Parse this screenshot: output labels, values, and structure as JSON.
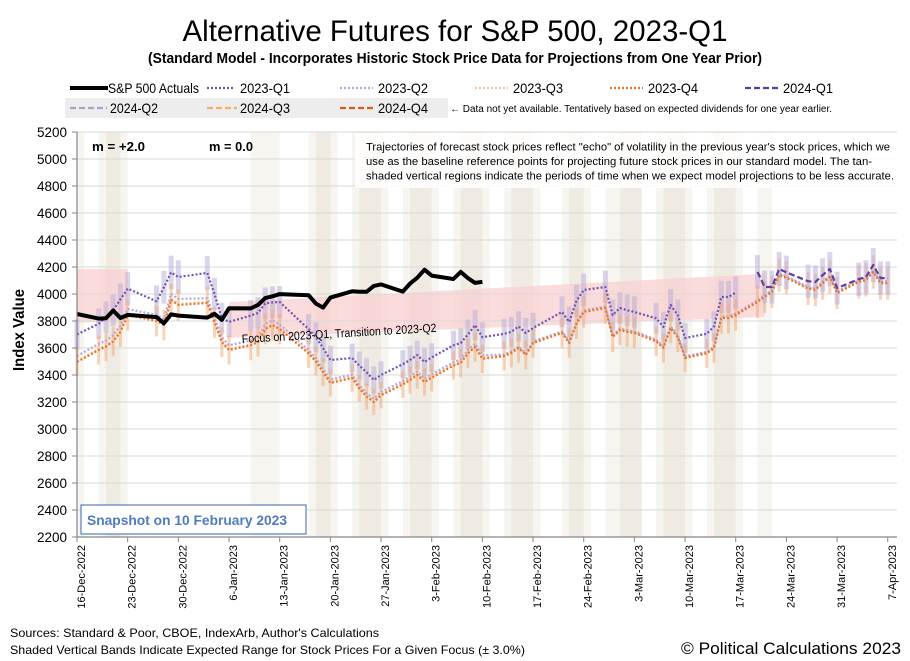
{
  "title": "Alternative Futures for S&P 500, 2023-Q1",
  "subtitle": "(Standard Model - Incorporates Historic Stock Price Data for Projections from One Year Prior)",
  "legend": {
    "items": [
      {
        "label": "S&P 500 Actuals",
        "series_index": 0
      },
      {
        "label": "2023-Q1",
        "series_index": 1
      },
      {
        "label": "2023-Q2",
        "series_index": 2
      },
      {
        "label": "2023-Q3",
        "series_index": 3
      },
      {
        "label": "2023-Q4",
        "series_index": 4
      },
      {
        "label": "2024-Q1",
        "series_index": 5
      },
      {
        "label": "2024-Q2",
        "series_index": 6
      },
      {
        "label": "2024-Q3",
        "series_index": 7
      },
      {
        "label": "2024-Q4",
        "series_index": 8
      }
    ],
    "note": "← Data not yet available.  Tentatively based on expected dividends for one year earlier."
  },
  "annotations": {
    "m_plus": "m = +2.0",
    "m_zero": "m = 0.0",
    "explanation": [
      "Trajectories of forecast stock prices reflect \"echo\" of volatility in  the previous year's stock prices, which we",
      "use as the baseline reference points for projecting future stock prices in our standard model.   The tan-",
      "shaded vertical regions indicate the periods of time when we expect model projections to be less accurate."
    ],
    "focus_label": "Focus on 2023-Q1, Transition to 2023-Q2",
    "snapshot": "Snapshot on 10 February 2023"
  },
  "footer": {
    "sources": "Sources: Standard & Poor, CBOE, IndexArb, Author's Calculations",
    "bands_note": "Shaded Vertical Bands Indicate Expected Range for Stock Prices For a Given Focus (± 3.0%)",
    "copyright": "© Political Calculations 2023"
  },
  "colors": {
    "low_accuracy_light": "#F7F5F0",
    "low_accuracy_dark": "#EFEBE2",
    "focus_range": "#F9D0D0",
    "gridline": "#D9D9D9",
    "axis": "#868686",
    "legend_bg": "#EDEDED",
    "snapshot_text": "#4F7BBF",
    "snapshot_border": "#5A7FB8"
  },
  "chart_data": {
    "type": "line",
    "title": "Alternative Futures for S&P 500, 2023-Q1",
    "xlabel": "",
    "ylabel": "Index Value",
    "ylim": [
      2200,
      5200
    ],
    "yticks": [
      "2200",
      "2400",
      "2600",
      "2800",
      "3000",
      "3200",
      "3400",
      "3600",
      "3800",
      "4000",
      "4200",
      "4400",
      "4600",
      "4800",
      "5000",
      "5200"
    ],
    "xlim": [
      "2022-12-16",
      "2023-04-08"
    ],
    "xticks": [
      {
        "date": "2022-12-16",
        "label": "16-Dec-2022"
      },
      {
        "date": "2022-12-23",
        "label": "23-Dec-2022"
      },
      {
        "date": "2022-12-30",
        "label": "30-Dec-2022"
      },
      {
        "date": "2023-01-06",
        "label": "6-Jan-2023"
      },
      {
        "date": "2023-01-13",
        "label": "13-Jan-2023"
      },
      {
        "date": "2023-01-20",
        "label": "20-Jan-2023"
      },
      {
        "date": "2023-01-27",
        "label": "27-Jan-2023"
      },
      {
        "date": "2023-02-03",
        "label": "3-Feb-2023"
      },
      {
        "date": "2023-02-10",
        "label": "10-Feb-2023"
      },
      {
        "date": "2023-02-17",
        "label": "17-Feb-2023"
      },
      {
        "date": "2023-02-24",
        "label": "24-Feb-2023"
      },
      {
        "date": "2023-03-03",
        "label": "3-Mar-2023"
      },
      {
        "date": "2023-03-10",
        "label": "10-Mar-2023"
      },
      {
        "date": "2023-03-17",
        "label": "17-Mar-2023"
      },
      {
        "date": "2023-03-24",
        "label": "24-Mar-2023"
      },
      {
        "date": "2023-03-31",
        "label": "31-Mar-2023"
      },
      {
        "date": "2023-04-07",
        "label": "7-Apr-2023"
      }
    ],
    "grid": "horizontal",
    "legend_position": "top",
    "error_band_pct": 3.0,
    "x": [
      "2022-12-16",
      "2022-12-19",
      "2022-12-20",
      "2022-12-21",
      "2022-12-22",
      "2022-12-23",
      "2022-12-27",
      "2022-12-28",
      "2022-12-29",
      "2022-12-30",
      "2023-01-03",
      "2023-01-04",
      "2023-01-05",
      "2023-01-06",
      "2023-01-09",
      "2023-01-10",
      "2023-01-11",
      "2023-01-12",
      "2023-01-13",
      "2023-01-17",
      "2023-01-18",
      "2023-01-19",
      "2023-01-20",
      "2023-01-23",
      "2023-01-24",
      "2023-01-25",
      "2023-01-26",
      "2023-01-27",
      "2023-01-30",
      "2023-01-31",
      "2023-02-01",
      "2023-02-02",
      "2023-02-03",
      "2023-02-06",
      "2023-02-07",
      "2023-02-08",
      "2023-02-09",
      "2023-02-10",
      "2023-02-13",
      "2023-02-14",
      "2023-02-15",
      "2023-02-16",
      "2023-02-17",
      "2023-02-21",
      "2023-02-22",
      "2023-02-23",
      "2023-02-24",
      "2023-02-27",
      "2023-02-28",
      "2023-03-01",
      "2023-03-02",
      "2023-03-03",
      "2023-03-06",
      "2023-03-07",
      "2023-03-08",
      "2023-03-09",
      "2023-03-10",
      "2023-03-13",
      "2023-03-14",
      "2023-03-15",
      "2023-03-16",
      "2023-03-17",
      "2023-03-20",
      "2023-03-21",
      "2023-03-22",
      "2023-03-23",
      "2023-03-24",
      "2023-03-27",
      "2023-03-28",
      "2023-03-29",
      "2023-03-30",
      "2023-03-31",
      "2023-04-03",
      "2023-04-04",
      "2023-04-05",
      "2023-04-06",
      "2023-04-07"
    ],
    "series": [
      {
        "name": "S&P 500 Actuals",
        "color": "#000000",
        "style": "solid",
        "error_bars": false,
        "values": [
          3852,
          3818,
          3821,
          3878,
          3822,
          3845,
          3829,
          3783,
          3849,
          3840,
          3825,
          3853,
          3808,
          3895,
          3893,
          3919,
          3970,
          3983,
          3999,
          3991,
          3929,
          3899,
          3973,
          4020,
          4017,
          4016,
          4060,
          4071,
          4018,
          4077,
          4120,
          4180,
          4136,
          4111,
          4164,
          4118,
          4082,
          4090,
          null,
          null,
          null,
          null,
          null,
          null,
          null,
          null,
          null,
          null,
          null,
          null,
          null,
          null,
          null,
          null,
          null,
          null,
          null,
          null,
          null,
          null,
          null,
          null,
          null,
          null,
          null,
          null,
          null,
          null,
          null,
          null,
          null,
          null,
          null,
          null,
          null,
          null,
          null
        ]
      },
      {
        "name": "2023-Q1",
        "color": "#7453AE",
        "style": "dotted",
        "error_bars": true,
        "error_bar_color": "#B7ABD9",
        "values": [
          3700,
          3780,
          3830,
          3880,
          3960,
          4040,
          3945,
          4050,
          4160,
          4126,
          4156,
          4000,
          3820,
          3793,
          3840,
          3860,
          3930,
          3938,
          3941,
          3740,
          3680,
          3600,
          3511,
          3526,
          3470,
          3420,
          3363,
          3400,
          3480,
          3511,
          3548,
          3496,
          3530,
          3620,
          3637,
          3700,
          3770,
          3680,
          3705,
          3719,
          3760,
          3711,
          3748,
          3867,
          3793,
          3950,
          4030,
          4052,
          3844,
          3896,
          3880,
          3867,
          3820,
          3756,
          3919,
          3844,
          3674,
          3705,
          3760,
          3978,
          3978,
          4010,
          null,
          null,
          null,
          null,
          null,
          null,
          null,
          null,
          null,
          null,
          null,
          null,
          null,
          null,
          null
        ]
      },
      {
        "name": "2023-Q2",
        "color": "#B6A8DA",
        "style": "dotted",
        "error_bars": false,
        "values": [
          3541,
          3630,
          3655,
          3695,
          3765,
          3889,
          3845,
          3815,
          4001,
          3964,
          3968,
          3825,
          3679,
          3620,
          3655,
          3679,
          3775,
          3805,
          3775,
          3585,
          3525,
          3445,
          3366,
          3403,
          3325,
          3265,
          3225,
          3275,
          3355,
          3388,
          3425,
          3373,
          3405,
          3495,
          3514,
          3585,
          3632,
          3545,
          3552,
          3575,
          3612,
          3560,
          3649,
          3723,
          3649,
          3792,
          3879,
          3908,
          3693,
          3745,
          3732,
          3723,
          3662,
          3612,
          3760,
          3693,
          3538,
          3572,
          3612,
          3834,
          3834,
          3856,
          3953,
          3992,
          4027,
          4153,
          4132,
          4052,
          4042,
          4092,
          4138,
          4019,
          4102,
          4116,
          4175,
          4093,
          4093
        ]
      },
      {
        "name": "2023-Q3",
        "color": "#F7C79F",
        "style": "dotted",
        "error_bars": false,
        "values": [
          3504,
          3593,
          3618,
          3658,
          3728,
          3852,
          3808,
          3778,
          3964,
          3927,
          3941,
          3798,
          3652,
          3593,
          3628,
          3652,
          3748,
          3778,
          3748,
          3568,
          3508,
          3428,
          3349,
          3386,
          3308,
          3248,
          3208,
          3258,
          3338,
          3371,
          3408,
          3356,
          3388,
          3478,
          3497,
          3568,
          3615,
          3528,
          3548,
          3571,
          3608,
          3556,
          3645,
          3719,
          3645,
          3788,
          3875,
          3904,
          3689,
          3741,
          3728,
          3719,
          3658,
          3608,
          3756,
          3689,
          3534,
          3568,
          3608,
          3830,
          3830,
          3852,
          3949,
          3988,
          4023,
          4149,
          4128,
          4048,
          4038,
          4088,
          4134,
          4015,
          4098,
          4112,
          4171,
          4089,
          4089
        ]
      },
      {
        "name": "2023-Q4",
        "color": "#E8742A",
        "style": "dotted",
        "error_bars": true,
        "error_bar_color": "#F2A772",
        "values": [
          3496,
          3585,
          3610,
          3650,
          3720,
          3844,
          3800,
          3770,
          3956,
          3919,
          3933,
          3790,
          3644,
          3585,
          3620,
          3644,
          3740,
          3770,
          3740,
          3560,
          3500,
          3420,
          3341,
          3378,
          3300,
          3240,
          3200,
          3250,
          3330,
          3363,
          3400,
          3348,
          3380,
          3470,
          3489,
          3560,
          3607,
          3520,
          3540,
          3563,
          3600,
          3548,
          3637,
          3711,
          3637,
          3780,
          3867,
          3896,
          3681,
          3733,
          3720,
          3711,
          3650,
          3600,
          3748,
          3681,
          3526,
          3560,
          3600,
          3822,
          3822,
          3844,
          3941,
          3980,
          4015,
          4141,
          4120,
          4040,
          4030,
          4080,
          4126,
          4007,
          4090,
          4104,
          4163,
          4081,
          4081
        ]
      },
      {
        "name": "2024-Q1",
        "color": "#5C3E9E",
        "style": "dashed",
        "error_bars": true,
        "error_bar_color": "#B7ABD9",
        "values": [
          null,
          null,
          null,
          null,
          null,
          null,
          null,
          null,
          null,
          null,
          null,
          null,
          null,
          null,
          null,
          null,
          null,
          null,
          null,
          null,
          null,
          null,
          null,
          null,
          null,
          null,
          null,
          null,
          null,
          null,
          null,
          null,
          null,
          null,
          null,
          null,
          null,
          null,
          null,
          null,
          null,
          null,
          null,
          null,
          null,
          null,
          null,
          null,
          null,
          null,
          null,
          null,
          null,
          null,
          null,
          null,
          null,
          null,
          null,
          null,
          null,
          null,
          4163,
          4052,
          4052,
          4185,
          4160,
          4095,
          4089,
          4140,
          4185,
          4044,
          4110,
          4126,
          4215,
          4118,
          4118
        ]
      },
      {
        "name": "2024-Q2",
        "color": "#A9A2CE",
        "style": "dashed",
        "error_bars": false,
        "values": []
      },
      {
        "name": "2024-Q3",
        "color": "#F2B06B",
        "style": "dashed",
        "error_bars": false,
        "values": []
      },
      {
        "name": "2024-Q4",
        "color": "#CF5E22",
        "style": "dashed",
        "error_bars": false,
        "values": []
      }
    ],
    "focus_ranges": [
      {
        "label": "",
        "start": "2022-12-16",
        "end": "2022-12-23",
        "low": [
          3790,
          3790
        ],
        "high": [
          4185,
          4185
        ]
      },
      {
        "label": "Focus on 2023-Q1, Transition to 2023-Q2",
        "start": "2023-01-06",
        "end": "2023-03-21",
        "low": [
          3675,
          3830
        ],
        "high": [
          3940,
          4150
        ]
      }
    ],
    "low_accuracy_periods": [
      {
        "start": "2022-12-16",
        "end": "2022-12-17",
        "shade": "light"
      },
      {
        "start": "2022-12-19",
        "end": "2022-12-23",
        "shade": "light"
      },
      {
        "start": "2022-12-20",
        "end": "2022-12-22",
        "shade": "dark"
      },
      {
        "start": "2023-01-09",
        "end": "2023-01-13",
        "shade": "light"
      },
      {
        "start": "2023-01-17",
        "end": "2023-01-21",
        "shade": "light"
      },
      {
        "start": "2023-01-18",
        "end": "2023-01-20",
        "shade": "dark"
      },
      {
        "start": "2023-01-23",
        "end": "2023-01-28",
        "shade": "light"
      },
      {
        "start": "2023-01-24",
        "end": "2023-01-27",
        "shade": "dark"
      },
      {
        "start": "2023-01-30",
        "end": "2023-02-04",
        "shade": "light"
      },
      {
        "start": "2023-01-31",
        "end": "2023-02-03",
        "shade": "dark"
      },
      {
        "start": "2023-02-06",
        "end": "2023-02-11",
        "shade": "light"
      },
      {
        "start": "2023-02-07",
        "end": "2023-02-10",
        "shade": "dark"
      },
      {
        "start": "2023-02-13",
        "end": "2023-02-18",
        "shade": "light"
      },
      {
        "start": "2023-02-14",
        "end": "2023-02-17",
        "shade": "dark"
      },
      {
        "start": "2023-02-21",
        "end": "2023-02-25",
        "shade": "light"
      },
      {
        "start": "2023-02-22",
        "end": "2023-02-24",
        "shade": "dark"
      },
      {
        "start": "2023-02-27",
        "end": "2023-03-04",
        "shade": "light"
      },
      {
        "start": "2023-03-01",
        "end": "2023-03-04",
        "shade": "dark"
      },
      {
        "start": "2023-03-06",
        "end": "2023-03-11",
        "shade": "light"
      },
      {
        "start": "2023-03-07",
        "end": "2023-03-10",
        "shade": "dark"
      },
      {
        "start": "2023-03-13",
        "end": "2023-03-18",
        "shade": "light"
      },
      {
        "start": "2023-03-14",
        "end": "2023-03-17",
        "shade": "dark"
      },
      {
        "start": "2023-03-20",
        "end": "2023-03-22",
        "shade": "light"
      }
    ]
  }
}
